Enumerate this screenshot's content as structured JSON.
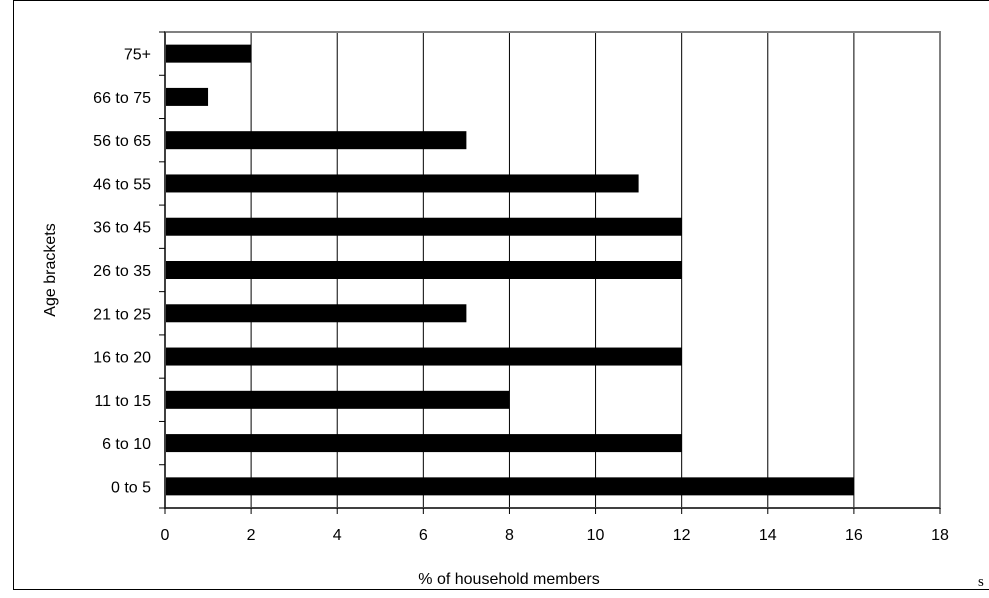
{
  "chart_data": {
    "type": "bar",
    "orientation": "horizontal",
    "categories": [
      "0 to 5",
      "6 to 10",
      "11 to 15",
      "16 to 20",
      "21 to 25",
      "26 to 35",
      "36 to 45",
      "46 to 55",
      "56 to 65",
      "66 to 75",
      "75+"
    ],
    "values": [
      16,
      12,
      8,
      12,
      7,
      12,
      12,
      11,
      7,
      1,
      2
    ],
    "title": "",
    "xlabel": "% of household members",
    "ylabel": "Age brackets",
    "xlim": [
      0,
      18
    ],
    "xticks": [
      "0",
      "2",
      "4",
      "6",
      "8",
      "10",
      "12",
      "14",
      "16",
      "18"
    ],
    "grid": true,
    "legend": "none",
    "bar_color": "#000000",
    "grid_color": "#000000",
    "plot_border_color": "#808080"
  },
  "trailing_text": "s"
}
